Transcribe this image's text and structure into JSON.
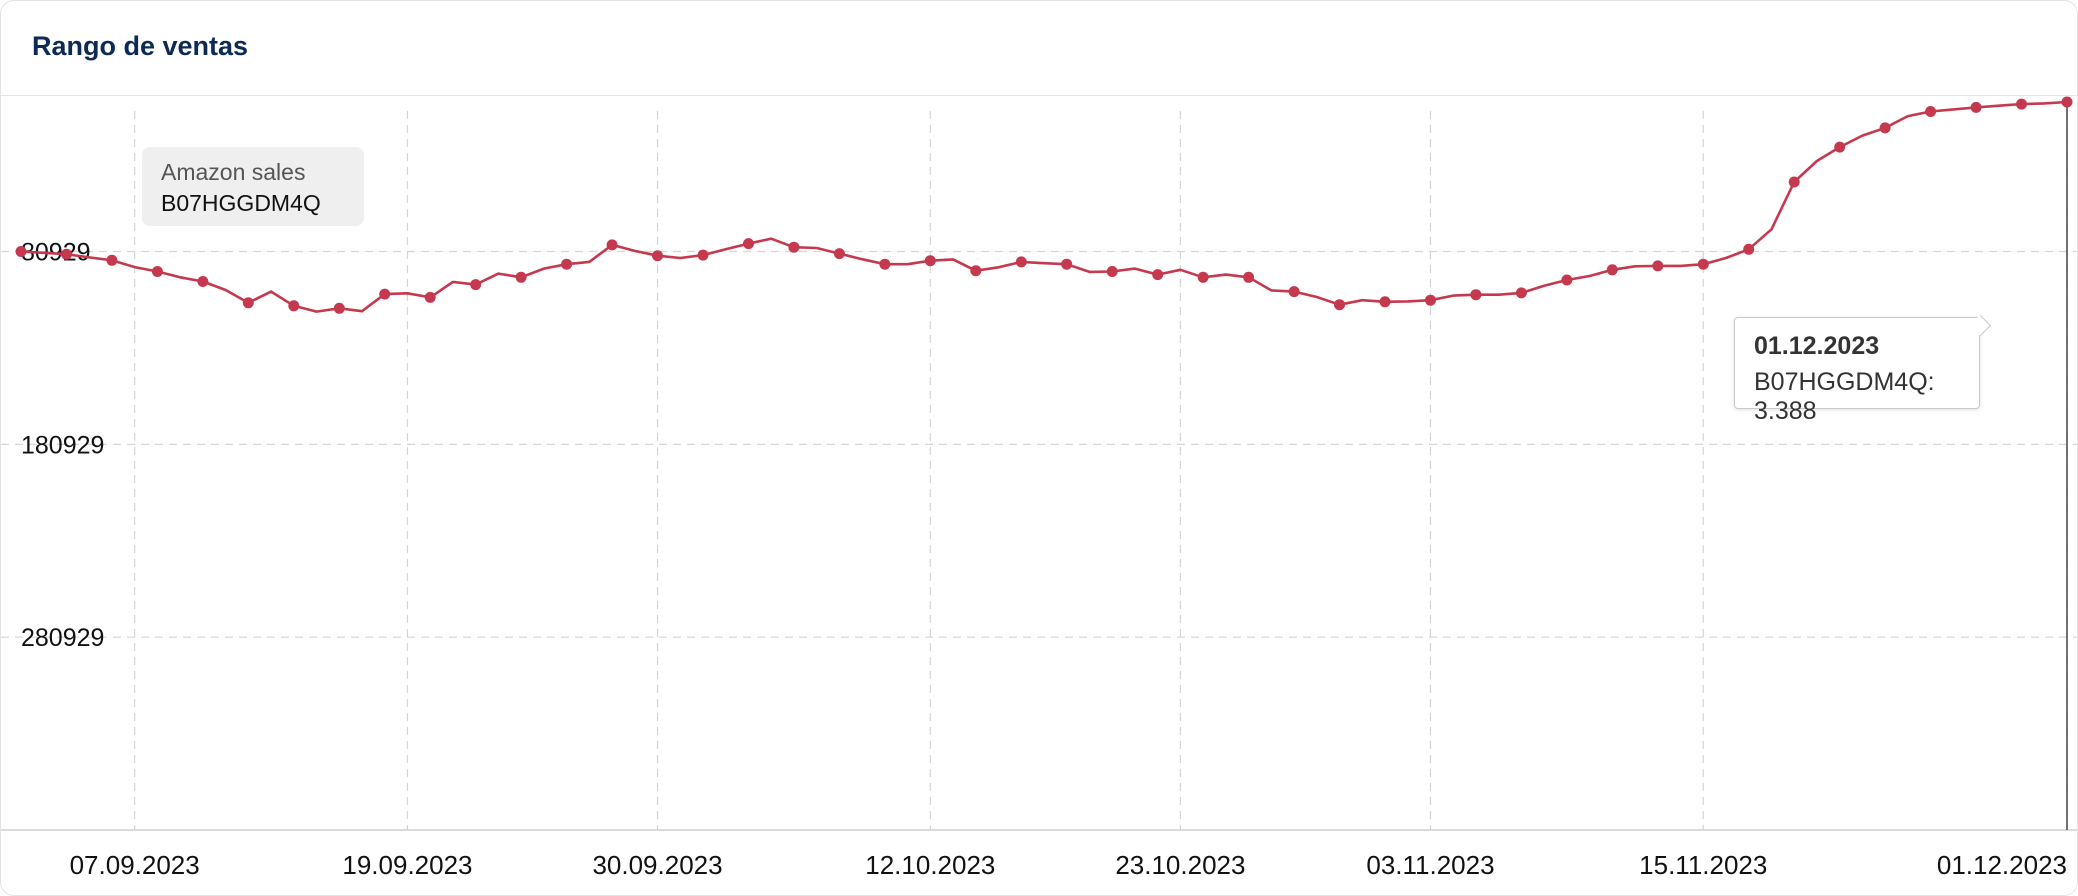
{
  "card": {
    "title": "Rango de ventas"
  },
  "legend": {
    "label": "Amazon sales",
    "series_name": "B07HGGDM4Q"
  },
  "tooltip": {
    "date": "01.12.2023",
    "series": "B07HGGDM4Q",
    "value_text": "3.388"
  },
  "colors": {
    "series": "#c5394f",
    "grid": "#d5d5d5",
    "title": "#0d2a55"
  },
  "chart_data": {
    "type": "line",
    "title": "Rango de ventas",
    "xlabel": "",
    "ylabel": "",
    "y_axis": {
      "reversed": true,
      "ticks": [
        "80929",
        "180929",
        "280929"
      ],
      "tick_values": [
        80929,
        180929,
        280929
      ],
      "range": [
        3388,
        380929
      ]
    },
    "x_ticks": [
      "07.09.2023",
      "19.09.2023",
      "30.09.2023",
      "12.10.2023",
      "23.10.2023",
      "03.11.2023",
      "15.11.2023",
      "01.12.2023"
    ],
    "x_range": [
      "2023-09-02",
      "2023-12-01"
    ],
    "grid": true,
    "legend_position": "top-left",
    "series": [
      {
        "name": "B07HGGDM4Q",
        "points": [
          {
            "date": "2023-09-02",
            "rank": 80929
          },
          {
            "date": "2023-09-03",
            "rank": 81600
          },
          {
            "date": "2023-09-04",
            "rank": 82300
          },
          {
            "date": "2023-09-05",
            "rank": 84000
          },
          {
            "date": "2023-09-06",
            "rank": 85500
          },
          {
            "date": "2023-09-07",
            "rank": 89000
          },
          {
            "date": "2023-09-08",
            "rank": 91300
          },
          {
            "date": "2023-09-09",
            "rank": 94300
          },
          {
            "date": "2023-09-10",
            "rank": 96500
          },
          {
            "date": "2023-09-11",
            "rank": 100900
          },
          {
            "date": "2023-09-12",
            "rank": 107500
          },
          {
            "date": "2023-09-13",
            "rank": 101700
          },
          {
            "date": "2023-09-14",
            "rank": 109100
          },
          {
            "date": "2023-09-15",
            "rank": 112100
          },
          {
            "date": "2023-09-16",
            "rank": 110400
          },
          {
            "date": "2023-09-17",
            "rank": 111900
          },
          {
            "date": "2023-09-18",
            "rank": 103000
          },
          {
            "date": "2023-09-19",
            "rank": 102600
          },
          {
            "date": "2023-09-20",
            "rank": 104700
          },
          {
            "date": "2023-09-21",
            "rank": 96700
          },
          {
            "date": "2023-09-22",
            "rank": 98100
          },
          {
            "date": "2023-09-23",
            "rank": 92400
          },
          {
            "date": "2023-09-24",
            "rank": 94300
          },
          {
            "date": "2023-09-25",
            "rank": 89800
          },
          {
            "date": "2023-09-26",
            "rank": 87500
          },
          {
            "date": "2023-09-27",
            "rank": 86300
          },
          {
            "date": "2023-09-28",
            "rank": 77500
          },
          {
            "date": "2023-09-29",
            "rank": 80600
          },
          {
            "date": "2023-09-30",
            "rank": 83100
          },
          {
            "date": "2023-10-01",
            "rank": 84300
          },
          {
            "date": "2023-10-02",
            "rank": 82800
          },
          {
            "date": "2023-10-03",
            "rank": 79800
          },
          {
            "date": "2023-10-04",
            "rank": 76800
          },
          {
            "date": "2023-10-05",
            "rank": 74300
          },
          {
            "date": "2023-10-06",
            "rank": 78700
          },
          {
            "date": "2023-10-07",
            "rank": 79100
          },
          {
            "date": "2023-10-08",
            "rank": 82000
          },
          {
            "date": "2023-10-09",
            "rank": 84900
          },
          {
            "date": "2023-10-10",
            "rank": 87500
          },
          {
            "date": "2023-10-11",
            "rank": 87500
          },
          {
            "date": "2023-10-12",
            "rank": 85700
          },
          {
            "date": "2023-10-13",
            "rank": 85000
          },
          {
            "date": "2023-10-14",
            "rank": 90900
          },
          {
            "date": "2023-10-15",
            "rank": 89100
          },
          {
            "date": "2023-10-16",
            "rank": 86300
          },
          {
            "date": "2023-10-17",
            "rank": 87000
          },
          {
            "date": "2023-10-18",
            "rank": 87500
          },
          {
            "date": "2023-10-19",
            "rank": 91500
          },
          {
            "date": "2023-10-20",
            "rank": 91300
          },
          {
            "date": "2023-10-21",
            "rank": 89800
          },
          {
            "date": "2023-10-22",
            "rank": 92900
          },
          {
            "date": "2023-10-23",
            "rank": 90400
          },
          {
            "date": "2023-10-24",
            "rank": 94300
          },
          {
            "date": "2023-10-25",
            "rank": 92900
          },
          {
            "date": "2023-10-26",
            "rank": 94300
          },
          {
            "date": "2023-10-27",
            "rank": 101100
          },
          {
            "date": "2023-10-28",
            "rank": 101700
          },
          {
            "date": "2023-10-29",
            "rank": 104500
          },
          {
            "date": "2023-10-30",
            "rank": 108500
          },
          {
            "date": "2023-10-31",
            "rank": 106200
          },
          {
            "date": "2023-11-01",
            "rank": 107000
          },
          {
            "date": "2023-11-02",
            "rank": 106800
          },
          {
            "date": "2023-11-03",
            "rank": 106200
          },
          {
            "date": "2023-11-04",
            "rank": 103800
          },
          {
            "date": "2023-11-05",
            "rank": 103300
          },
          {
            "date": "2023-11-06",
            "rank": 103300
          },
          {
            "date": "2023-11-07",
            "rank": 102400
          },
          {
            "date": "2023-11-08",
            "rank": 98700
          },
          {
            "date": "2023-11-09",
            "rank": 95700
          },
          {
            "date": "2023-11-10",
            "rank": 93600
          },
          {
            "date": "2023-11-11",
            "rank": 90400
          },
          {
            "date": "2023-11-12",
            "rank": 88600
          },
          {
            "date": "2023-11-13",
            "rank": 88400
          },
          {
            "date": "2023-11-14",
            "rank": 88400
          },
          {
            "date": "2023-11-15",
            "rank": 87500
          },
          {
            "date": "2023-11-16",
            "rank": 84300
          },
          {
            "date": "2023-11-17",
            "rank": 79800
          },
          {
            "date": "2023-11-18",
            "rank": 69400
          },
          {
            "date": "2023-11-19",
            "rank": 44900
          },
          {
            "date": "2023-11-20",
            "rank": 34000
          },
          {
            "date": "2023-11-21",
            "rank": 26800
          },
          {
            "date": "2023-11-22",
            "rank": 20800
          },
          {
            "date": "2023-11-23",
            "rank": 16800
          },
          {
            "date": "2023-11-24",
            "rank": 10700
          },
          {
            "date": "2023-11-25",
            "rank": 8300
          },
          {
            "date": "2023-11-26",
            "rank": 7200
          },
          {
            "date": "2023-11-27",
            "rank": 6200
          },
          {
            "date": "2023-11-28",
            "rank": 5300
          },
          {
            "date": "2023-11-29",
            "rank": 4500
          },
          {
            "date": "2023-11-30",
            "rank": 4100
          },
          {
            "date": "2023-12-01",
            "rank": 3388
          }
        ]
      }
    ]
  }
}
